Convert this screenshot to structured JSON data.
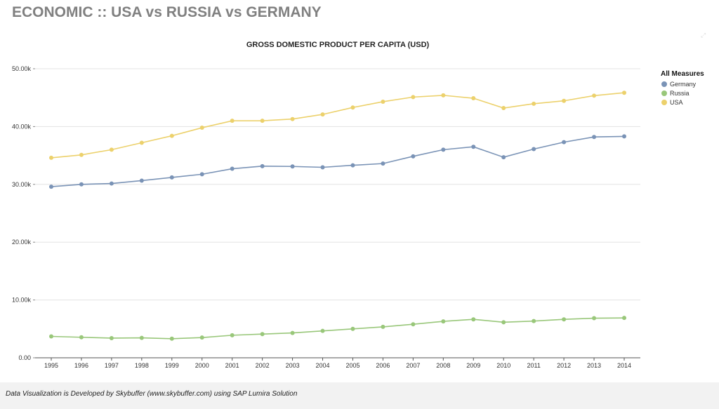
{
  "page": {
    "title": "ECONOMIC :: USA vs RUSSIA vs GERMANY",
    "footer": "Data Visualization is Developed by Skybuffer (www.skybuffer.com) using SAP Lumira Solution"
  },
  "chart_data": {
    "type": "line",
    "title": "GROSS DOMESTIC PRODUCT PER CAPITA (USD)",
    "xlabel": "",
    "ylabel": "",
    "ylim": [
      0,
      50000
    ],
    "yticks": [
      {
        "value": 0,
        "label": "0.00"
      },
      {
        "value": 10000,
        "label": "10.00k"
      },
      {
        "value": 20000,
        "label": "20.00k"
      },
      {
        "value": 30000,
        "label": "30.00k"
      },
      {
        "value": 40000,
        "label": "40.00k"
      },
      {
        "value": 50000,
        "label": "50.00k"
      }
    ],
    "grid": true,
    "legend": {
      "title": "All Measures",
      "placement": "right",
      "entries": [
        "Germany",
        "Russia",
        "USA"
      ]
    },
    "categories": [
      "1995",
      "1996",
      "1997",
      "1998",
      "1999",
      "2000",
      "2001",
      "2002",
      "2003",
      "2004",
      "2005",
      "2006",
      "2007",
      "2008",
      "2009",
      "2010",
      "2011",
      "2012",
      "2013",
      "2014"
    ],
    "series": [
      {
        "name": "Germany",
        "color": "#7a93b6",
        "values": [
          29600,
          30000,
          30150,
          30650,
          31200,
          31750,
          32700,
          33150,
          33100,
          32950,
          33300,
          33600,
          34850,
          36000,
          36500,
          34700,
          36100,
          37300,
          38200,
          38300
        ]
      },
      {
        "name": "Russia",
        "color": "#99c77a",
        "values": [
          3700,
          3550,
          3400,
          3450,
          3300,
          3500,
          3900,
          4100,
          4300,
          4650,
          5000,
          5350,
          5800,
          6300,
          6650,
          6150,
          6350,
          6650,
          6850,
          6900
        ]
      },
      {
        "name": "USA",
        "color": "#ecd16c",
        "values": [
          34600,
          35100,
          36000,
          37200,
          38400,
          39800,
          41000,
          41000,
          41300,
          42100,
          43300,
          44300,
          45100,
          45400,
          44900,
          43200,
          43950,
          44450,
          45350,
          45850
        ]
      }
    ]
  }
}
